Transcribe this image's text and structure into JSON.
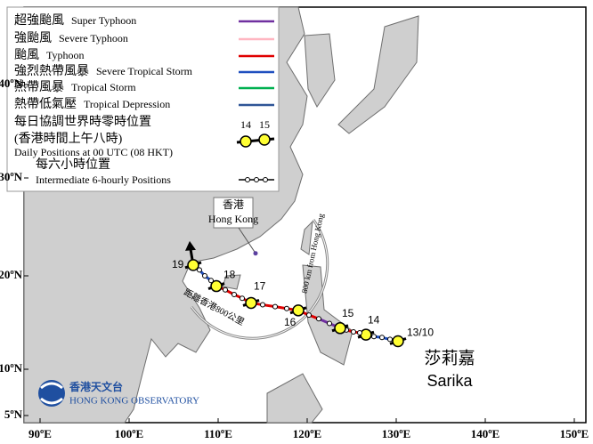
{
  "legend": {
    "items": [
      {
        "zh": "超強颱風",
        "en": "Super Typhoon",
        "color": "#7030a0"
      },
      {
        "zh": "強颱風",
        "en": "Severe Typhoon",
        "color": "#ffb6c1"
      },
      {
        "zh": "颱風",
        "en": "Typhoon",
        "color": "#e00000"
      },
      {
        "zh": "強烈熱帶風暴",
        "en": "Severe Tropical Storm",
        "color": "#1f4fbf"
      },
      {
        "zh": "熱帶風暴",
        "en": "Tropical Storm",
        "color": "#00b050"
      },
      {
        "zh": "熱帶低氣壓",
        "en": "Tropical Depression",
        "color": "#2f5597"
      }
    ],
    "daily_zh": "每日協調世界時零時位置",
    "daily_zh2": "(香港時間上午八時)",
    "daily_labels": [
      "14",
      "15"
    ],
    "daily_en": "Daily Positions at 00 UTC (08 HKT)",
    "six_zh": "每六小時位置",
    "six_en": "Intermediate 6-hourly Positions"
  },
  "map": {
    "lon_ticks": [
      {
        "value": 90,
        "label": "90ºE"
      },
      {
        "value": 100,
        "label": "100ºE"
      },
      {
        "value": 110,
        "label": "110ºE"
      },
      {
        "value": 120,
        "label": "120ºE"
      },
      {
        "value": 130,
        "label": "130ºE"
      },
      {
        "value": 140,
        "label": "140ºE"
      },
      {
        "value": 150,
        "label": "150ºE"
      }
    ],
    "lat_ticks": [
      {
        "value": 5,
        "label": "5ºN"
      },
      {
        "value": 10,
        "label": "10ºN"
      },
      {
        "value": 20,
        "label": "20ºN"
      },
      {
        "value": 30,
        "label": "30ºN"
      },
      {
        "value": 40,
        "label": "40ºN"
      }
    ],
    "hong_kong": {
      "zh": "香港",
      "en": "Hong Kong",
      "lon": 114.2,
      "lat": 22.3
    },
    "range_zh": "距離香港800公里",
    "range_en": "800 km from Hong Kong"
  },
  "track": {
    "name_zh": "莎莉嘉",
    "name_en": "Sarika",
    "points": [
      {
        "label": "13/10",
        "lon": 130.2,
        "lat": 13.0,
        "cat": 3
      },
      {
        "lon": 129.3,
        "lat": 13.2,
        "cat": 3
      },
      {
        "lon": 128.4,
        "lat": 13.4,
        "cat": 3
      },
      {
        "lon": 127.5,
        "lat": 13.5,
        "cat": 3
      },
      {
        "label": "14",
        "lon": 126.6,
        "lat": 13.7,
        "cat": 2
      },
      {
        "lon": 125.9,
        "lat": 13.9,
        "cat": 2
      },
      {
        "lon": 125.2,
        "lat": 14.0,
        "cat": 2
      },
      {
        "lon": 124.4,
        "lat": 14.2,
        "cat": 2
      },
      {
        "label": "15",
        "lon": 123.7,
        "lat": 14.4,
        "cat": 0
      },
      {
        "lon": 122.5,
        "lat": 14.9,
        "cat": 0
      },
      {
        "lon": 121.3,
        "lat": 15.4,
        "cat": 2
      },
      {
        "lon": 120.2,
        "lat": 15.8,
        "cat": 2
      },
      {
        "label": "16",
        "lon": 119.0,
        "lat": 16.3,
        "cat": 2
      },
      {
        "lon": 117.7,
        "lat": 16.5,
        "cat": 2
      },
      {
        "lon": 116.4,
        "lat": 16.7,
        "cat": 2
      },
      {
        "lon": 115.0,
        "lat": 16.9,
        "cat": 2
      },
      {
        "label": "17",
        "lon": 113.7,
        "lat": 17.1,
        "cat": 2
      },
      {
        "lon": 112.7,
        "lat": 17.6,
        "cat": 2
      },
      {
        "lon": 111.8,
        "lat": 18.0,
        "cat": 2
      },
      {
        "lon": 110.8,
        "lat": 18.5,
        "cat": 2
      },
      {
        "label": "18",
        "lon": 109.8,
        "lat": 18.9,
        "cat": 3
      },
      {
        "lon": 109.2,
        "lat": 19.5,
        "cat": 3
      },
      {
        "lon": 108.5,
        "lat": 20.0,
        "cat": 3
      },
      {
        "lon": 107.9,
        "lat": 20.6,
        "cat": 3
      },
      {
        "label": "19",
        "lon": 107.2,
        "lat": 21.1,
        "cat": 3
      }
    ]
  },
  "logo": {
    "zh": "香港天文台",
    "en": "HONG KONG OBSERVATORY"
  }
}
